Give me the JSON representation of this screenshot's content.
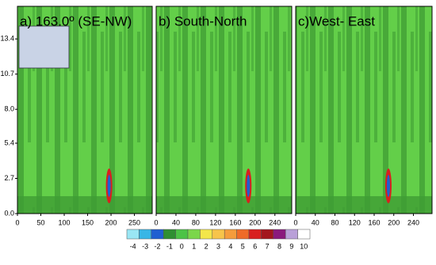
{
  "chart_data": [
    {
      "type": "contour",
      "title": "a) 163.0º (SE-NW)",
      "xlim": [
        0,
        288
      ],
      "xticks": [
        0,
        50,
        100,
        150,
        200,
        250
      ],
      "ylim": [
        0,
        15.9
      ],
      "yticks": [
        {
          "value": 0,
          "label": "0.0"
        },
        2.7,
        5.4,
        {
          "value": 8,
          "label": "8.0"
        },
        10.7,
        13.4
      ]
    },
    {
      "type": "contour",
      "title": "b) South-North",
      "xlim": [
        0,
        274
      ],
      "xticks": [
        0,
        40,
        80,
        120,
        160,
        200,
        240
      ],
      "ylim": [
        0,
        15.9
      ]
    },
    {
      "type": "contour",
      "title": "c)West- East",
      "xlim": [
        0,
        278
      ],
      "xticks": [
        0,
        40,
        80,
        120,
        160,
        200,
        240
      ],
      "ylim": [
        0,
        15.9
      ]
    }
  ],
  "colorbar": {
    "ticks": [
      -4,
      -3,
      -2,
      -1,
      0,
      1,
      2,
      3,
      4,
      5,
      6,
      7,
      8,
      9,
      10
    ],
    "colors": [
      "#9ae6f4",
      "#38b6e6",
      "#1f5fd1",
      "#2f8f32",
      "#4cc346",
      "#7bd64a",
      "#f3e64a",
      "#f7c44a",
      "#f59c3c",
      "#ef6b28",
      "#d8201f",
      "#a3161e",
      "#8a1a7d",
      "#b9a0d8",
      "#ffffff"
    ]
  }
}
